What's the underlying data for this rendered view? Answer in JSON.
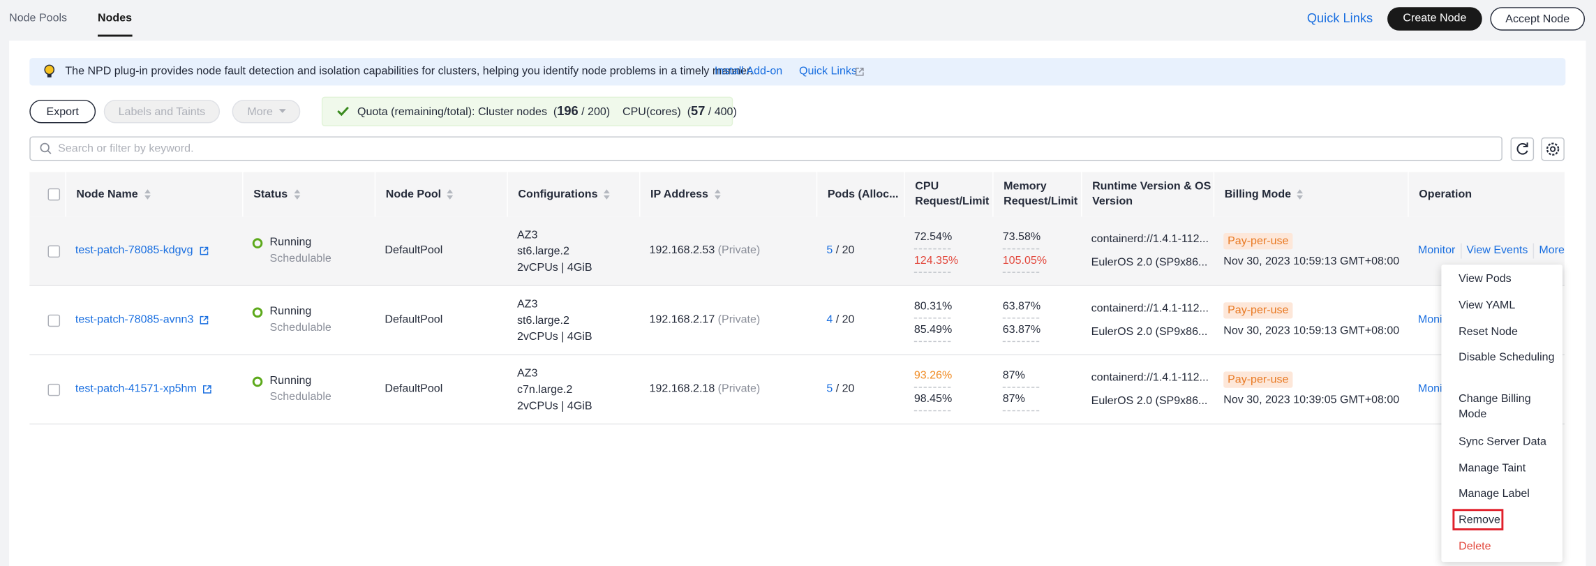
{
  "tabs": [
    "Node Pools",
    "Nodes"
  ],
  "header": {
    "quick_links": "Quick Links",
    "buttons": [
      "Create Node",
      "Accept Node"
    ]
  },
  "notice": {
    "text": "The NPD plug-in provides node fault detection and isolation capabilities for clusters, helping you identify node problems in a timely manner.",
    "links": [
      "Install Add-on",
      "Quick Links"
    ]
  },
  "toolbar": {
    "buttons": [
      "Export",
      "Labels and Taints",
      "More"
    ]
  },
  "quota": [
    {
      "text": "Quota (remaining/total): Cluster nodes  (",
      "bold": false
    },
    {
      "text": "196",
      "bold": true
    },
    {
      "text": " / 200)    CPU(cores)  (",
      "bold": false
    },
    {
      "text": "57",
      "bold": true
    },
    {
      "text": " / 400)",
      "bold": false
    }
  ],
  "search": {
    "placeholder": "Search or filter by keyword."
  },
  "table": {
    "columns": [
      {
        "label": "Node Name",
        "sortable": true
      },
      {
        "label": "Status",
        "sortable": true
      },
      {
        "label": "Node Pool",
        "sortable": true
      },
      {
        "label": "Configurations",
        "sortable": true
      },
      {
        "label": "IP Address",
        "sortable": true
      },
      {
        "label": "Pods (Alloc...",
        "sortable": false
      },
      {
        "label": "CPU Request/Limit",
        "sortable": false
      },
      {
        "label": "Memory Request/Limit",
        "sortable": false
      },
      {
        "label": "Runtime Version & OS Version",
        "sortable": false
      },
      {
        "label": "Billing Mode",
        "sortable": true
      },
      {
        "label": "Operation",
        "sortable": false
      }
    ],
    "rows": [
      {
        "name": "test-patch-78085-kdgvg",
        "status": "Running",
        "schedule": "Schedulable",
        "pool": "DefaultPool",
        "config": [
          "AZ3",
          "st6.large.2",
          "2vCPUs | 4GiB"
        ],
        "ip": "192.168.2.53",
        "ip_type": "(Private)",
        "pods": {
          "allocated": "5",
          "total": "/ 20"
        },
        "cpu": [
          {
            "text": "72.54%",
            "tone": "normal"
          },
          {
            "text": "124.35%",
            "tone": "danger"
          }
        ],
        "memory": [
          {
            "text": "73.58%",
            "tone": "normal"
          },
          {
            "text": "105.05%",
            "tone": "danger"
          }
        ],
        "runtime": [
          "containerd://1.4.1-112...",
          "EulerOS 2.0 (SP9x86..."
        ],
        "billing": "Pay-per-use",
        "created": "Nov 30, 2023 10:59:13 GMT+08:00",
        "operations": [
          "Monitor",
          "View Events",
          "More"
        ],
        "hover": true
      },
      {
        "name": "test-patch-78085-avnn3",
        "status": "Running",
        "schedule": "Schedulable",
        "pool": "DefaultPool",
        "config": [
          "AZ3",
          "st6.large.2",
          "2vCPUs | 4GiB"
        ],
        "ip": "192.168.2.17",
        "ip_type": "(Private)",
        "pods": {
          "allocated": "4",
          "total": "/ 20"
        },
        "cpu": [
          {
            "text": "80.31%",
            "tone": "normal"
          },
          {
            "text": "85.49%",
            "tone": "normal"
          }
        ],
        "memory": [
          {
            "text": "63.87%",
            "tone": "normal"
          },
          {
            "text": "63.87%",
            "tone": "normal"
          }
        ],
        "runtime": [
          "containerd://1.4.1-112...",
          "EulerOS 2.0 (SP9x86..."
        ],
        "billing": "Pay-per-use",
        "created": "Nov 30, 2023 10:59:13 GMT+08:00",
        "operations": [
          "Monitor"
        ],
        "hover": false
      },
      {
        "name": "test-patch-41571-xp5hm",
        "status": "Running",
        "schedule": "Schedulable",
        "pool": "DefaultPool",
        "config": [
          "AZ3",
          "c7n.large.2",
          "2vCPUs | 4GiB"
        ],
        "ip": "192.168.2.18",
        "ip_type": "(Private)",
        "pods": {
          "allocated": "5",
          "total": "/ 20"
        },
        "cpu": [
          {
            "text": "93.26%",
            "tone": "warning"
          },
          {
            "text": "98.45%",
            "tone": "normal"
          }
        ],
        "memory": [
          {
            "text": "87%",
            "tone": "normal"
          },
          {
            "text": "87%",
            "tone": "normal"
          }
        ],
        "runtime": [
          "containerd://1.4.1-112...",
          "EulerOS 2.0 (SP9x86..."
        ],
        "billing": "Pay-per-use",
        "created": "Nov 30, 2023 10:39:05 GMT+08:00",
        "operations": [
          "Monitor"
        ],
        "hover": false
      }
    ]
  },
  "menu": {
    "items": [
      {
        "label": "View Pods",
        "style": "normal"
      },
      {
        "label": "View YAML",
        "style": "normal"
      },
      {
        "label": "Reset Node",
        "style": "normal"
      },
      {
        "label": "Disable Scheduling",
        "style": "normal"
      },
      {
        "label": "Change Billing Mode",
        "style": "normal"
      },
      {
        "label": "Sync Server Data",
        "style": "normal"
      },
      {
        "label": "Manage Taint",
        "style": "normal"
      },
      {
        "label": "Manage Label",
        "style": "normal"
      },
      {
        "label": "Remove",
        "style": "highlight"
      },
      {
        "label": "Delete",
        "style": "danger"
      }
    ]
  }
}
